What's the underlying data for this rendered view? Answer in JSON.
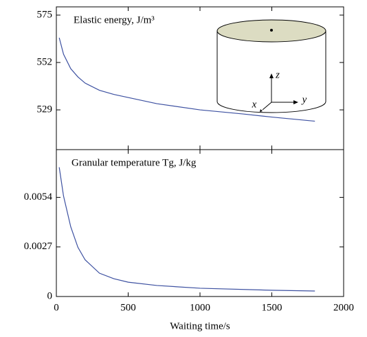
{
  "chart_data": [
    {
      "type": "line",
      "title": "Elastic energy, J/m³",
      "x": [
        20,
        50,
        100,
        150,
        200,
        300,
        400,
        500,
        700,
        1000,
        1300,
        1500,
        1800
      ],
      "values": [
        564,
        556,
        549,
        545,
        542,
        538.5,
        536.5,
        535,
        532,
        529,
        527,
        525.5,
        523.5
      ],
      "color": "#3b4fa0",
      "xlim": [
        0,
        2000
      ],
      "xticks": [
        0,
        500,
        1000,
        1500,
        2000
      ],
      "ylim": [
        509.7,
        579
      ],
      "yticks": [
        529,
        552,
        575
      ],
      "inset_labels": [
        "z",
        "x",
        "y"
      ]
    },
    {
      "type": "line",
      "title": "Granular temperature Tg, J/kg",
      "x": [
        20,
        50,
        100,
        150,
        200,
        300,
        400,
        500,
        700,
        1000,
        1500,
        1800
      ],
      "values": [
        0.00704,
        0.00547,
        0.0038,
        0.00268,
        0.002,
        0.00127,
        0.00097,
        0.00078,
        0.0006,
        0.00045,
        0.00034,
        0.0003
      ],
      "color": "#3b4fa0",
      "xlim": [
        0,
        2000
      ],
      "xticks": [
        0,
        500,
        1000,
        1500,
        2000
      ],
      "ylim": [
        0,
        0.008
      ],
      "yticks": [
        0,
        0.0027,
        0.0054
      ],
      "xlabel": "Waiting time/s"
    }
  ]
}
